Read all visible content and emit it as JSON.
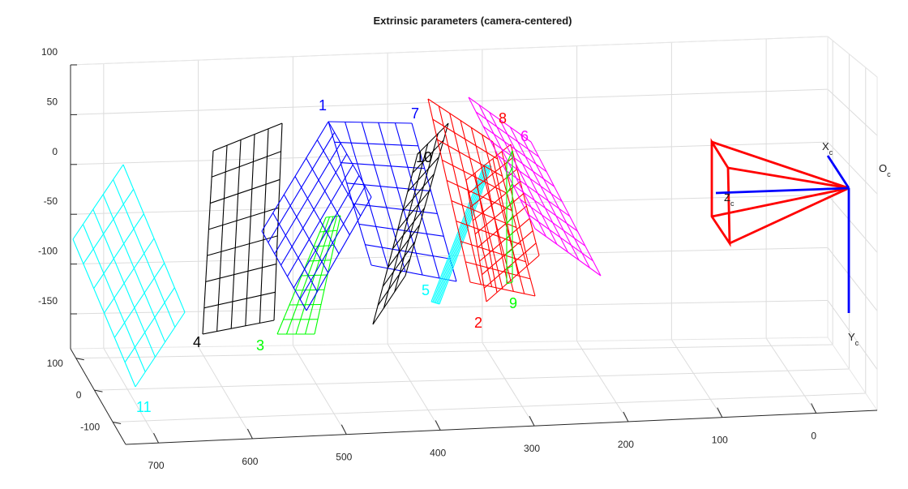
{
  "chart_data": {
    "type": "3d-line",
    "title": "Extrinsic parameters (camera-centered)",
    "grid": true,
    "axes": {
      "depth_ticks": [
        "700",
        "600",
        "500",
        "400",
        "300",
        "200",
        "100",
        "0"
      ],
      "vertical_ticks": [
        "100",
        "50",
        "0",
        "-50",
        "-100",
        "-150"
      ],
      "lateral_ticks": [
        "100",
        "0",
        "-100"
      ]
    },
    "planes": [
      {
        "id": "11",
        "color": "#00ffff"
      },
      {
        "id": "4",
        "color": "#000000"
      },
      {
        "id": "3",
        "color": "#00ff00"
      },
      {
        "id": "1",
        "color": "#0000ff"
      },
      {
        "id": "7",
        "color": "#0000ff"
      },
      {
        "id": "10",
        "color": "#000000"
      },
      {
        "id": "5",
        "color": "#00ffff"
      },
      {
        "id": "8",
        "color": "#ff0000"
      },
      {
        "id": "2",
        "color": "#ff0000"
      },
      {
        "id": "6",
        "color": "#ff00ff"
      },
      {
        "id": "9",
        "color": "#00ff00"
      }
    ],
    "camera": {
      "frustum_color": "#ff0000",
      "axis_color": "#0000ff",
      "labels": [
        {
          "main": "X",
          "sub": "c"
        },
        {
          "main": "Y",
          "sub": "c"
        },
        {
          "main": "Z",
          "sub": "c"
        },
        {
          "main": "O",
          "sub": "c"
        }
      ]
    }
  }
}
